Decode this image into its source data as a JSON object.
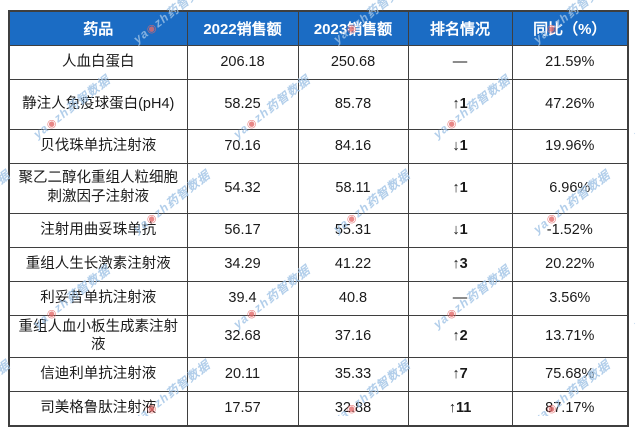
{
  "chart_data": {
    "type": "table",
    "columns": [
      "药品",
      "2022销售额",
      "2023销售额",
      "排名情况",
      "同比（%）"
    ],
    "rows": [
      {
        "drug": "人血白蛋白",
        "sales_2022": 206.18,
        "sales_2023": 250.68,
        "rank_change": "—",
        "rank_dir": "none",
        "yoy_pct": "21.59%"
      },
      {
        "drug": "静注人免疫球蛋白(pH4)",
        "sales_2022": 58.25,
        "sales_2023": 85.78,
        "rank_change": "↑1",
        "rank_dir": "up",
        "yoy_pct": "47.26%"
      },
      {
        "drug": "贝伐珠单抗注射液",
        "sales_2022": 70.16,
        "sales_2023": 84.16,
        "rank_change": "↓1",
        "rank_dir": "down",
        "yoy_pct": "19.96%"
      },
      {
        "drug": "聚乙二醇化重组人粒细胞刺激因子注射液",
        "sales_2022": 54.32,
        "sales_2023": 58.11,
        "rank_change": "↑1",
        "rank_dir": "up",
        "yoy_pct": "6.96%"
      },
      {
        "drug": "注射用曲妥珠单抗",
        "sales_2022": 56.17,
        "sales_2023": 55.31,
        "rank_change": "↓1",
        "rank_dir": "down",
        "yoy_pct": "-1.52%"
      },
      {
        "drug": "重组人生长激素注射液",
        "sales_2022": 34.29,
        "sales_2023": 41.22,
        "rank_change": "↑3",
        "rank_dir": "up",
        "yoy_pct": "20.22%"
      },
      {
        "drug": "利妥昔单抗注射液",
        "sales_2022": 39.4,
        "sales_2023": 40.8,
        "rank_change": "—",
        "rank_dir": "none",
        "yoy_pct": "3.56%"
      },
      {
        "drug": "重组人血小板生成素注射液",
        "sales_2022": 32.68,
        "sales_2023": 37.16,
        "rank_change": "↑2",
        "rank_dir": "up",
        "yoy_pct": "13.71%"
      },
      {
        "drug": "信迪利单抗注射液",
        "sales_2022": 20.11,
        "sales_2023": 35.33,
        "rank_change": "↑7",
        "rank_dir": "up",
        "yoy_pct": "75.68%"
      },
      {
        "drug": "司美格鲁肽注射液",
        "sales_2022": 17.57,
        "sales_2023": 32.88,
        "rank_change": "↑11",
        "rank_dir": "up",
        "yoy_pct": "87.17%"
      }
    ]
  },
  "watermark": {
    "prefix": "ya",
    "logo_dot": "◉",
    "suffix": "zh药智数据"
  },
  "colors": {
    "header_bg": "#1b6cc4",
    "header_text": "#ffffff",
    "border": "#3f3f3f",
    "rank_up": "#ff0000",
    "rank_down": "#00b050",
    "text": "#1a1a1a",
    "watermark": "#9fc3e6",
    "watermark_dot": "#e36a6a"
  }
}
